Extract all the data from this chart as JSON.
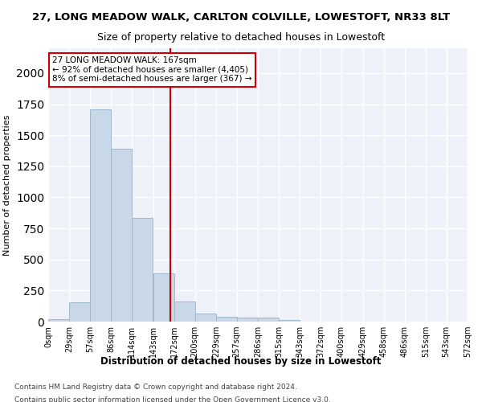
{
  "title_line1": "27, LONG MEADOW WALK, CARLTON COLVILLE, LOWESTOFT, NR33 8LT",
  "title_line2": "Size of property relative to detached houses in Lowestoft",
  "xlabel": "Distribution of detached houses by size in Lowestoft",
  "ylabel": "Number of detached properties",
  "bar_values": [
    20,
    155,
    1705,
    1390,
    835,
    390,
    160,
    65,
    40,
    30,
    30,
    15,
    0,
    0,
    0,
    0,
    0,
    0,
    0
  ],
  "bar_left_edges": [
    0,
    29,
    57,
    86,
    114,
    143,
    172,
    200,
    229,
    257,
    286,
    315,
    343,
    372,
    400,
    429,
    458,
    486,
    515
  ],
  "bar_width": 28.5,
  "tick_labels": [
    "0sqm",
    "29sqm",
    "57sqm",
    "86sqm",
    "114sqm",
    "143sqm",
    "172sqm",
    "200sqm",
    "229sqm",
    "257sqm",
    "286sqm",
    "315sqm",
    "343sqm",
    "372sqm",
    "400sqm",
    "429sqm",
    "458sqm",
    "486sqm",
    "515sqm",
    "543sqm",
    "572sqm"
  ],
  "tick_positions": [
    0,
    29,
    57,
    86,
    114,
    143,
    172,
    200,
    229,
    257,
    286,
    315,
    343,
    372,
    400,
    429,
    458,
    486,
    515,
    543,
    572
  ],
  "vline_x": 167,
  "annotation_text": "27 LONG MEADOW WALK: 167sqm\n← 92% of detached houses are smaller (4,405)\n8% of semi-detached houses are larger (367) →",
  "bar_color": "#c8d8e8",
  "bar_edgecolor": "#a0b8cc",
  "vline_color": "#cc0000",
  "annotation_box_color": "#cc0000",
  "background_color": "#eef2f8",
  "grid_color": "#ffffff",
  "footer_line1": "Contains HM Land Registry data © Crown copyright and database right 2024.",
  "footer_line2": "Contains public sector information licensed under the Open Government Licence v3.0.",
  "ylim": [
    0,
    2200
  ],
  "xlim": [
    0,
    572
  ]
}
